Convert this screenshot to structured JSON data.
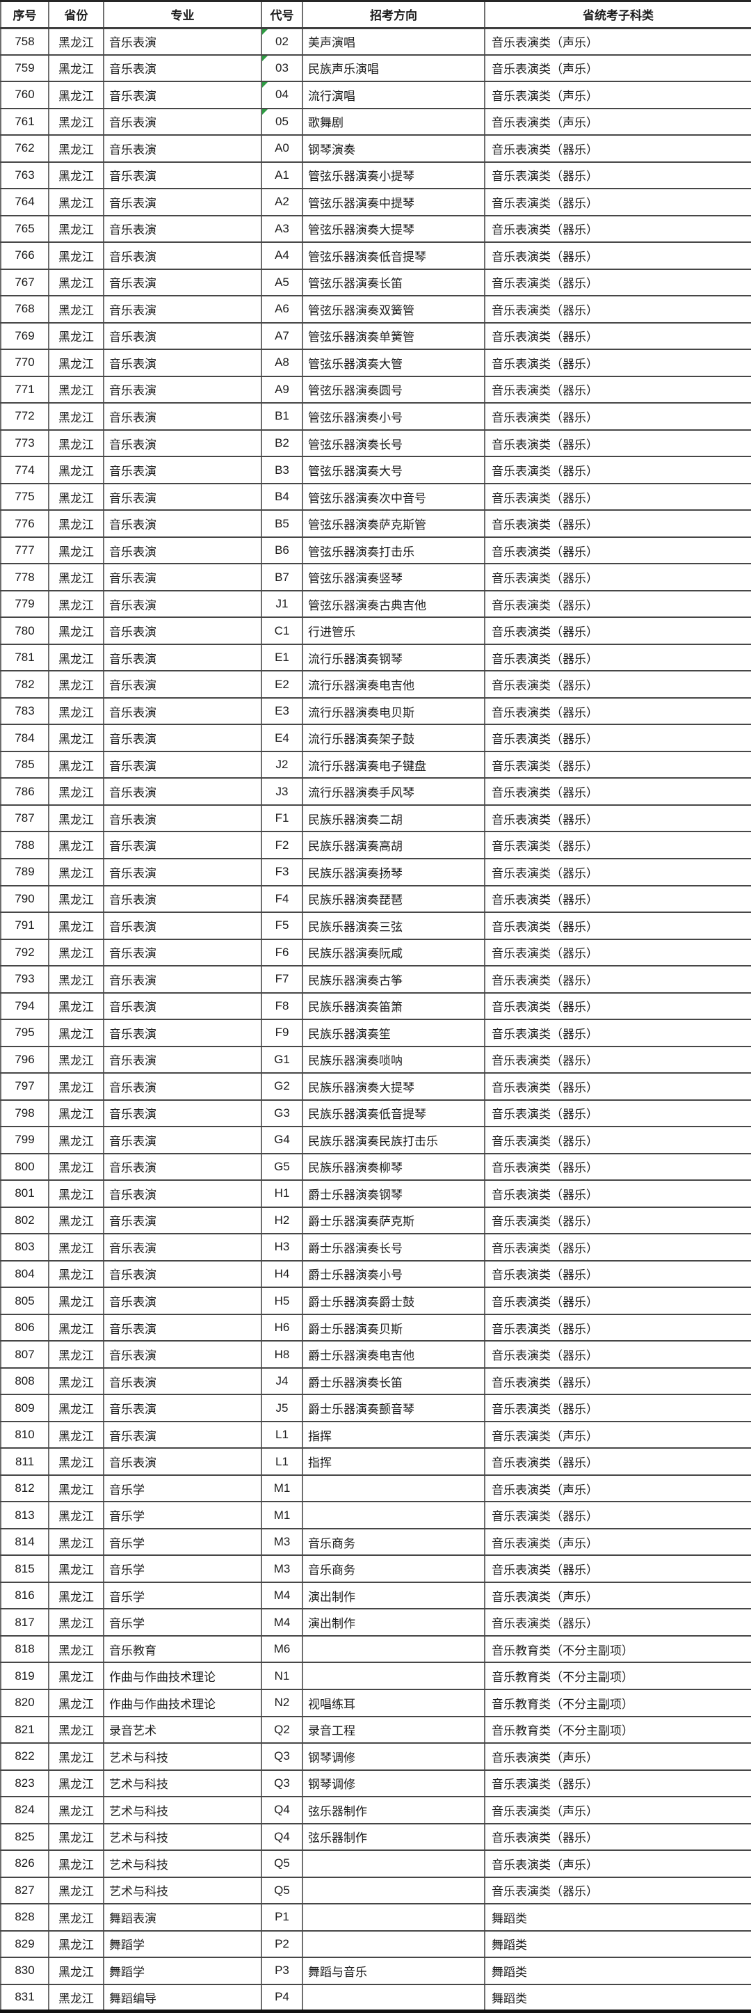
{
  "colors": {
    "grid_horizontal": "#474747",
    "grid_vertical": "#6f6f6f",
    "outer_border": "#262626",
    "text": "#1c1c1c",
    "marker_green": "#2e9b43"
  },
  "table": {
    "columns": [
      {
        "label": "序号"
      },
      {
        "label": "省份"
      },
      {
        "label": "专业"
      },
      {
        "label": "代号"
      },
      {
        "label": "招考方向"
      },
      {
        "label": "省统考子科类"
      }
    ],
    "row_keys": [
      "seq",
      "province",
      "major",
      "code",
      "direction",
      "category"
    ],
    "rows": [
      {
        "seq": "758",
        "province": "黑龙江",
        "major": "音乐表演",
        "code": "02",
        "direction": "美声演唱",
        "category": "音乐表演类（声乐）",
        "code_marker": true
      },
      {
        "seq": "759",
        "province": "黑龙江",
        "major": "音乐表演",
        "code": "03",
        "direction": "民族声乐演唱",
        "category": "音乐表演类（声乐）",
        "code_marker": true
      },
      {
        "seq": "760",
        "province": "黑龙江",
        "major": "音乐表演",
        "code": "04",
        "direction": "流行演唱",
        "category": "音乐表演类（声乐）",
        "code_marker": true
      },
      {
        "seq": "761",
        "province": "黑龙江",
        "major": "音乐表演",
        "code": "05",
        "direction": "歌舞剧",
        "category": "音乐表演类（声乐）",
        "code_marker": true
      },
      {
        "seq": "762",
        "province": "黑龙江",
        "major": "音乐表演",
        "code": "A0",
        "direction": "钢琴演奏",
        "category": "音乐表演类（器乐）",
        "code_marker": false
      },
      {
        "seq": "763",
        "province": "黑龙江",
        "major": "音乐表演",
        "code": "A1",
        "direction": "管弦乐器演奏小提琴",
        "category": "音乐表演类（器乐）",
        "code_marker": false
      },
      {
        "seq": "764",
        "province": "黑龙江",
        "major": "音乐表演",
        "code": "A2",
        "direction": "管弦乐器演奏中提琴",
        "category": "音乐表演类（器乐）",
        "code_marker": false
      },
      {
        "seq": "765",
        "province": "黑龙江",
        "major": "音乐表演",
        "code": "A3",
        "direction": "管弦乐器演奏大提琴",
        "category": "音乐表演类（器乐）",
        "code_marker": false
      },
      {
        "seq": "766",
        "province": "黑龙江",
        "major": "音乐表演",
        "code": "A4",
        "direction": "管弦乐器演奏低音提琴",
        "category": "音乐表演类（器乐）",
        "code_marker": false
      },
      {
        "seq": "767",
        "province": "黑龙江",
        "major": "音乐表演",
        "code": "A5",
        "direction": "管弦乐器演奏长笛",
        "category": "音乐表演类（器乐）",
        "code_marker": false
      },
      {
        "seq": "768",
        "province": "黑龙江",
        "major": "音乐表演",
        "code": "A6",
        "direction": "管弦乐器演奏双簧管",
        "category": "音乐表演类（器乐）",
        "code_marker": false
      },
      {
        "seq": "769",
        "province": "黑龙江",
        "major": "音乐表演",
        "code": "A7",
        "direction": "管弦乐器演奏单簧管",
        "category": "音乐表演类（器乐）",
        "code_marker": false
      },
      {
        "seq": "770",
        "province": "黑龙江",
        "major": "音乐表演",
        "code": "A8",
        "direction": "管弦乐器演奏大管",
        "category": "音乐表演类（器乐）",
        "code_marker": false
      },
      {
        "seq": "771",
        "province": "黑龙江",
        "major": "音乐表演",
        "code": "A9",
        "direction": "管弦乐器演奏圆号",
        "category": "音乐表演类（器乐）",
        "code_marker": false
      },
      {
        "seq": "772",
        "province": "黑龙江",
        "major": "音乐表演",
        "code": "B1",
        "direction": "管弦乐器演奏小号",
        "category": "音乐表演类（器乐）",
        "code_marker": false
      },
      {
        "seq": "773",
        "province": "黑龙江",
        "major": "音乐表演",
        "code": "B2",
        "direction": "管弦乐器演奏长号",
        "category": "音乐表演类（器乐）",
        "code_marker": false
      },
      {
        "seq": "774",
        "province": "黑龙江",
        "major": "音乐表演",
        "code": "B3",
        "direction": "管弦乐器演奏大号",
        "category": "音乐表演类（器乐）",
        "code_marker": false
      },
      {
        "seq": "775",
        "province": "黑龙江",
        "major": "音乐表演",
        "code": "B4",
        "direction": "管弦乐器演奏次中音号",
        "category": "音乐表演类（器乐）",
        "code_marker": false
      },
      {
        "seq": "776",
        "province": "黑龙江",
        "major": "音乐表演",
        "code": "B5",
        "direction": "管弦乐器演奏萨克斯管",
        "category": "音乐表演类（器乐）",
        "code_marker": false
      },
      {
        "seq": "777",
        "province": "黑龙江",
        "major": "音乐表演",
        "code": "B6",
        "direction": "管弦乐器演奏打击乐",
        "category": "音乐表演类（器乐）",
        "code_marker": false
      },
      {
        "seq": "778",
        "province": "黑龙江",
        "major": "音乐表演",
        "code": "B7",
        "direction": "管弦乐器演奏竖琴",
        "category": "音乐表演类（器乐）",
        "code_marker": false
      },
      {
        "seq": "779",
        "province": "黑龙江",
        "major": "音乐表演",
        "code": "J1",
        "direction": "管弦乐器演奏古典吉他",
        "category": "音乐表演类（器乐）",
        "code_marker": false
      },
      {
        "seq": "780",
        "province": "黑龙江",
        "major": "音乐表演",
        "code": "C1",
        "direction": "行进管乐",
        "category": "音乐表演类（器乐）",
        "code_marker": false
      },
      {
        "seq": "781",
        "province": "黑龙江",
        "major": "音乐表演",
        "code": "E1",
        "direction": "流行乐器演奏钢琴",
        "category": "音乐表演类（器乐）",
        "code_marker": false
      },
      {
        "seq": "782",
        "province": "黑龙江",
        "major": "音乐表演",
        "code": "E2",
        "direction": "流行乐器演奏电吉他",
        "category": "音乐表演类（器乐）",
        "code_marker": false
      },
      {
        "seq": "783",
        "province": "黑龙江",
        "major": "音乐表演",
        "code": "E3",
        "direction": "流行乐器演奏电贝斯",
        "category": "音乐表演类（器乐）",
        "code_marker": false
      },
      {
        "seq": "784",
        "province": "黑龙江",
        "major": "音乐表演",
        "code": "E4",
        "direction": "流行乐器演奏架子鼓",
        "category": "音乐表演类（器乐）",
        "code_marker": false
      },
      {
        "seq": "785",
        "province": "黑龙江",
        "major": "音乐表演",
        "code": "J2",
        "direction": "流行乐器演奏电子键盘",
        "category": "音乐表演类（器乐）",
        "code_marker": false
      },
      {
        "seq": "786",
        "province": "黑龙江",
        "major": "音乐表演",
        "code": "J3",
        "direction": "流行乐器演奏手风琴",
        "category": "音乐表演类（器乐）",
        "code_marker": false
      },
      {
        "seq": "787",
        "province": "黑龙江",
        "major": "音乐表演",
        "code": "F1",
        "direction": "民族乐器演奏二胡",
        "category": "音乐表演类（器乐）",
        "code_marker": false
      },
      {
        "seq": "788",
        "province": "黑龙江",
        "major": "音乐表演",
        "code": "F2",
        "direction": "民族乐器演奏高胡",
        "category": "音乐表演类（器乐）",
        "code_marker": false
      },
      {
        "seq": "789",
        "province": "黑龙江",
        "major": "音乐表演",
        "code": "F3",
        "direction": "民族乐器演奏扬琴",
        "category": "音乐表演类（器乐）",
        "code_marker": false
      },
      {
        "seq": "790",
        "province": "黑龙江",
        "major": "音乐表演",
        "code": "F4",
        "direction": "民族乐器演奏琵琶",
        "category": "音乐表演类（器乐）",
        "code_marker": false
      },
      {
        "seq": "791",
        "province": "黑龙江",
        "major": "音乐表演",
        "code": "F5",
        "direction": "民族乐器演奏三弦",
        "category": "音乐表演类（器乐）",
        "code_marker": false
      },
      {
        "seq": "792",
        "province": "黑龙江",
        "major": "音乐表演",
        "code": "F6",
        "direction": "民族乐器演奏阮咸",
        "category": "音乐表演类（器乐）",
        "code_marker": false
      },
      {
        "seq": "793",
        "province": "黑龙江",
        "major": "音乐表演",
        "code": "F7",
        "direction": "民族乐器演奏古筝",
        "category": "音乐表演类（器乐）",
        "code_marker": false
      },
      {
        "seq": "794",
        "province": "黑龙江",
        "major": "音乐表演",
        "code": "F8",
        "direction": "民族乐器演奏笛箫",
        "category": "音乐表演类（器乐）",
        "code_marker": false
      },
      {
        "seq": "795",
        "province": "黑龙江",
        "major": "音乐表演",
        "code": "F9",
        "direction": "民族乐器演奏笙",
        "category": "音乐表演类（器乐）",
        "code_marker": false
      },
      {
        "seq": "796",
        "province": "黑龙江",
        "major": "音乐表演",
        "code": "G1",
        "direction": "民族乐器演奏唢呐",
        "category": "音乐表演类（器乐）",
        "code_marker": false
      },
      {
        "seq": "797",
        "province": "黑龙江",
        "major": "音乐表演",
        "code": "G2",
        "direction": "民族乐器演奏大提琴",
        "category": "音乐表演类（器乐）",
        "code_marker": false
      },
      {
        "seq": "798",
        "province": "黑龙江",
        "major": "音乐表演",
        "code": "G3",
        "direction": "民族乐器演奏低音提琴",
        "category": "音乐表演类（器乐）",
        "code_marker": false
      },
      {
        "seq": "799",
        "province": "黑龙江",
        "major": "音乐表演",
        "code": "G4",
        "direction": "民族乐器演奏民族打击乐",
        "category": "音乐表演类（器乐）",
        "code_marker": false
      },
      {
        "seq": "800",
        "province": "黑龙江",
        "major": "音乐表演",
        "code": "G5",
        "direction": "民族乐器演奏柳琴",
        "category": "音乐表演类（器乐）",
        "code_marker": false
      },
      {
        "seq": "801",
        "province": "黑龙江",
        "major": "音乐表演",
        "code": "H1",
        "direction": "爵士乐器演奏钢琴",
        "category": "音乐表演类（器乐）",
        "code_marker": false
      },
      {
        "seq": "802",
        "province": "黑龙江",
        "major": "音乐表演",
        "code": "H2",
        "direction": "爵士乐器演奏萨克斯",
        "category": "音乐表演类（器乐）",
        "code_marker": false
      },
      {
        "seq": "803",
        "province": "黑龙江",
        "major": "音乐表演",
        "code": "H3",
        "direction": "爵士乐器演奏长号",
        "category": "音乐表演类（器乐）",
        "code_marker": false
      },
      {
        "seq": "804",
        "province": "黑龙江",
        "major": "音乐表演",
        "code": "H4",
        "direction": "爵士乐器演奏小号",
        "category": "音乐表演类（器乐）",
        "code_marker": false
      },
      {
        "seq": "805",
        "province": "黑龙江",
        "major": "音乐表演",
        "code": "H5",
        "direction": "爵士乐器演奏爵士鼓",
        "category": "音乐表演类（器乐）",
        "code_marker": false
      },
      {
        "seq": "806",
        "province": "黑龙江",
        "major": "音乐表演",
        "code": "H6",
        "direction": "爵士乐器演奏贝斯",
        "category": "音乐表演类（器乐）",
        "code_marker": false
      },
      {
        "seq": "807",
        "province": "黑龙江",
        "major": "音乐表演",
        "code": "H8",
        "direction": "爵士乐器演奏电吉他",
        "category": "音乐表演类（器乐）",
        "code_marker": false
      },
      {
        "seq": "808",
        "province": "黑龙江",
        "major": "音乐表演",
        "code": "J4",
        "direction": "爵士乐器演奏长笛",
        "category": "音乐表演类（器乐）",
        "code_marker": false
      },
      {
        "seq": "809",
        "province": "黑龙江",
        "major": "音乐表演",
        "code": "J5",
        "direction": "爵士乐器演奏颤音琴",
        "category": "音乐表演类（器乐）",
        "code_marker": false
      },
      {
        "seq": "810",
        "province": "黑龙江",
        "major": "音乐表演",
        "code": "L1",
        "direction": "指挥",
        "category": "音乐表演类（声乐）",
        "code_marker": false
      },
      {
        "seq": "811",
        "province": "黑龙江",
        "major": "音乐表演",
        "code": "L1",
        "direction": "指挥",
        "category": "音乐表演类（器乐）",
        "code_marker": false
      },
      {
        "seq": "812",
        "province": "黑龙江",
        "major": "音乐学",
        "code": "M1",
        "direction": "",
        "category": "音乐表演类（声乐）",
        "code_marker": false
      },
      {
        "seq": "813",
        "province": "黑龙江",
        "major": "音乐学",
        "code": "M1",
        "direction": "",
        "category": "音乐表演类（器乐）",
        "code_marker": false
      },
      {
        "seq": "814",
        "province": "黑龙江",
        "major": "音乐学",
        "code": "M3",
        "direction": "音乐商务",
        "category": "音乐表演类（声乐）",
        "code_marker": false
      },
      {
        "seq": "815",
        "province": "黑龙江",
        "major": "音乐学",
        "code": "M3",
        "direction": "音乐商务",
        "category": "音乐表演类（器乐）",
        "code_marker": false
      },
      {
        "seq": "816",
        "province": "黑龙江",
        "major": "音乐学",
        "code": "M4",
        "direction": "演出制作",
        "category": "音乐表演类（声乐）",
        "code_marker": false
      },
      {
        "seq": "817",
        "province": "黑龙江",
        "major": "音乐学",
        "code": "M4",
        "direction": "演出制作",
        "category": "音乐表演类（器乐）",
        "code_marker": false
      },
      {
        "seq": "818",
        "province": "黑龙江",
        "major": "音乐教育",
        "code": "M6",
        "direction": "",
        "category": "音乐教育类（不分主副项）",
        "code_marker": false
      },
      {
        "seq": "819",
        "province": "黑龙江",
        "major": "作曲与作曲技术理论",
        "code": "N1",
        "direction": "",
        "category": "音乐教育类（不分主副项）",
        "code_marker": false
      },
      {
        "seq": "820",
        "province": "黑龙江",
        "major": "作曲与作曲技术理论",
        "code": "N2",
        "direction": "视唱练耳",
        "category": "音乐教育类（不分主副项）",
        "code_marker": false
      },
      {
        "seq": "821",
        "province": "黑龙江",
        "major": "录音艺术",
        "code": "Q2",
        "direction": "录音工程",
        "category": "音乐教育类（不分主副项）",
        "code_marker": false
      },
      {
        "seq": "822",
        "province": "黑龙江",
        "major": "艺术与科技",
        "code": "Q3",
        "direction": "钢琴调修",
        "category": "音乐表演类（声乐）",
        "code_marker": false
      },
      {
        "seq": "823",
        "province": "黑龙江",
        "major": "艺术与科技",
        "code": "Q3",
        "direction": "钢琴调修",
        "category": "音乐表演类（器乐）",
        "code_marker": false
      },
      {
        "seq": "824",
        "province": "黑龙江",
        "major": "艺术与科技",
        "code": "Q4",
        "direction": "弦乐器制作",
        "category": "音乐表演类（声乐）",
        "code_marker": false
      },
      {
        "seq": "825",
        "province": "黑龙江",
        "major": "艺术与科技",
        "code": "Q4",
        "direction": "弦乐器制作",
        "category": "音乐表演类（器乐）",
        "code_marker": false
      },
      {
        "seq": "826",
        "province": "黑龙江",
        "major": "艺术与科技",
        "code": "Q5",
        "direction": "",
        "category": "音乐表演类（声乐）",
        "code_marker": false
      },
      {
        "seq": "827",
        "province": "黑龙江",
        "major": "艺术与科技",
        "code": "Q5",
        "direction": "",
        "category": "音乐表演类（器乐）",
        "code_marker": false
      },
      {
        "seq": "828",
        "province": "黑龙江",
        "major": "舞蹈表演",
        "code": "P1",
        "direction": "",
        "category": "舞蹈类",
        "code_marker": false
      },
      {
        "seq": "829",
        "province": "黑龙江",
        "major": "舞蹈学",
        "code": "P2",
        "direction": "",
        "category": "舞蹈类",
        "code_marker": false
      },
      {
        "seq": "830",
        "province": "黑龙江",
        "major": "舞蹈学",
        "code": "P3",
        "direction": "舞蹈与音乐",
        "category": "舞蹈类",
        "code_marker": false
      },
      {
        "seq": "831",
        "province": "黑龙江",
        "major": "舞蹈编导",
        "code": "P4",
        "direction": "",
        "category": "舞蹈类",
        "code_marker": false
      }
    ]
  }
}
